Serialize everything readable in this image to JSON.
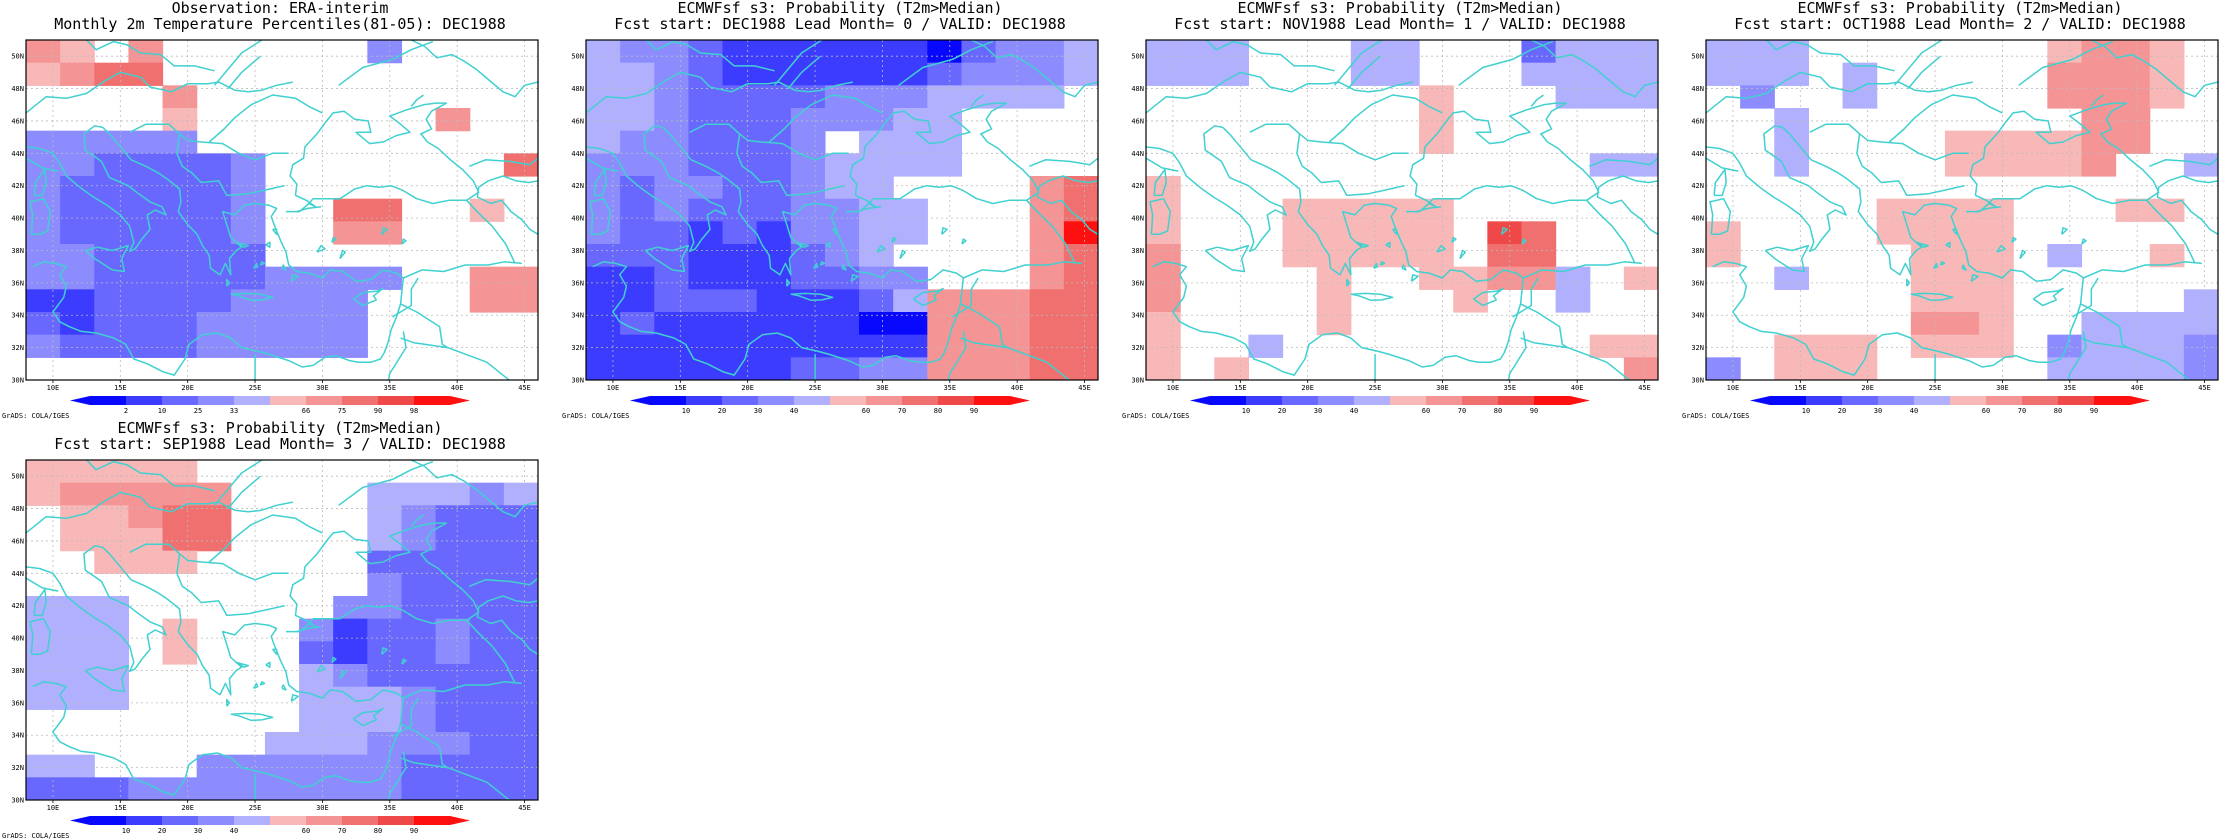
{
  "map_extent": {
    "lon_range": [
      8,
      46
    ],
    "lat_range": [
      30,
      51
    ],
    "lon_ticks": [
      "10E",
      "15E",
      "20E",
      "25E",
      "30E",
      "35E",
      "40E",
      "45E"
    ],
    "lat_ticks": [
      "30N",
      "32N",
      "34N",
      "36N",
      "38N",
      "40N",
      "42N",
      "44N",
      "46N",
      "48N",
      "50N"
    ]
  },
  "colors": {
    "coastline": "#40d0d0",
    "grid": "#bbbbbb",
    "pos_scale": [
      "#ffffff",
      "#f8b8b8",
      "#f49494",
      "#f07070",
      "#ee4848",
      "#ff1010"
    ],
    "neg_scale": [
      "#ffffff",
      "#b0b0ff",
      "#8c8cff",
      "#6868ff",
      "#3c3cff",
      "#0808ff"
    ]
  },
  "credit": "GrADS: COLA/IGES",
  "panels": [
    {
      "id": "obs",
      "title1": "Observation: ERA-interim",
      "title2": "Monthly 2m Temperature Percentiles(81-05): DEC1988",
      "colorbar_labels": [
        "2",
        "10",
        "25",
        "33",
        "66",
        "75",
        "90",
        "98"
      ],
      "grid": [
        "2 1 0 2 0 0 0 0 0 0 -2 0 0 0 0",
        "1 2 3 3 0 0 0 0 0 0 0 0 0 0 0",
        "0 0 0 0 2 0 0 0 0 0 0 0 0 0 0",
        "0 0 0 0 1 0 0 0 0 0 0 0 2 0 0",
        "-2 -2 -2 -2 -2 0 0 0 0 0 0 0 0 0 0",
        "-2 -2 -3 -3 -3 -3 -2 0 0 0 0 0 0 0 3",
        "-2 -3 -3 -3 -3 -3 -2 0 0 0 0 0 0 0 0",
        "-2 -3 -3 -3 -3 -3 -2 0 0 3 3 0 0 1 0",
        "-2 -3 -3 -3 -3 -3 -2 0 0 2 2 0 0 0 0",
        "-2 -2 -3 -3 -3 -3 -3 0 0 0 0 0 0 0 0",
        "-2 -2 -3 -3 -3 -3 -3 -2 -2 -2 -2 0 0 2 2",
        "-4 -4 -3 -3 -3 -3 -2 -2 -2 -2 0 0 0 2 2",
        "-3 -4 -3 -3 -3 -2 -2 -2 -2 -2 0 0 0 0 0",
        "-2 -3 -3 -3 -3 -2 -2 -2 -2 -2 0 0 0 0 0",
        "0 0 0 0 0 0 0 0 0 0 0 0 0 0 0"
      ]
    },
    {
      "id": "lead0",
      "title1": "ECMWFsf s3: Probability (T2m>Median)",
      "title2": "Fcst start: DEC1988  Lead Month= 0 / VALID: DEC1988",
      "colorbar_labels": [
        "10",
        "20",
        "30",
        "40",
        "60",
        "70",
        "80",
        "90"
      ],
      "grid": [
        "-1 -2 -2 -3 -4 -4 -4 -4 -4 -4 -5 -3 -2 -2 -1",
        "-1 -1 -2 -3 -4 -4 -4 -4 -4 -4 -3 -2 -2 -2 -1",
        "-1 -1 -2 -3 -3 -3 -3 -2 -2 -2 -1 -1 -1 -1 0",
        "-1 -1 -2 -3 -3 -3 -2 -2 -2 -1 -1 0 0 0 0",
        "-1 -2 -2 -3 -3 -3 -2 0 -1 -1 -1 0 0 0 0",
        "-2 -2 -2 -3 -3 -3 -2 -1 -1 -1 -1 0 0 0 0",
        "-2 -3 -2 -2 -3 -3 -2 -1 -1 0 0 0 0 2 3",
        "-2 -3 -2 -3 -3 -3 -2 -2 -1 -1 0 0 0 2 3",
        "-2 -3 -3 -4 -3 -4 -2 -2 -1 -1 0 0 0 2 5",
        "-3 -3 -3 -4 -4 -4 -3 -2 -1 0 0 0 0 2 3",
        "-4 -4 -3 -4 -4 -4 -3 -3 -2 -2 0 0 0 2 3",
        "-4 -4 -3 -3 -3 -4 -4 -4 -3 -1 2 2 2 3 3",
        "-4 -3 -4 -4 -4 -4 -4 -4 -5 -5 2 2 2 3 3",
        "-4 -4 -4 -4 -4 -4 -4 -4 -4 -4 2 2 2 3 3",
        "-4 -4 -4 -4 -4 -4 -3 -3 -2 -2 2 2 2 3 3"
      ]
    },
    {
      "id": "lead1",
      "title1": "ECMWFsf s3: Probability (T2m>Median)",
      "title2": "Fcst start: NOV1988  Lead Month= 1 / VALID: DEC1988",
      "colorbar_labels": [
        "10",
        "20",
        "30",
        "40",
        "60",
        "70",
        "80",
        "90"
      ],
      "grid": [
        "-1 -1 -1 0 0 0 -1 -1 0 0 0 -3 -1 -1 -1",
        "-1 -1 -1 0 0 0 -1 -1 0 0 0 -1 -1 -1 -1",
        "0 0 0 0 0 0 0 0 1 0 0 0 -1 -1 -1",
        "0 0 0 0 0 0 0 0 1 0 0 0 0 0 0",
        "0 0 0 0 0 0 0 0 1 0 0 0 0 0 0",
        "0 0 0 0 0 0 0 0 0 0 0 0 0 -1 -1",
        "1 0 0 0 0 0 0 0 0 0 0 0 0 0 0",
        "1 0 0 0 1 1 1 1 1 0 0 0 0 0 0",
        "1 0 0 0 1 1 1 1 1 0 4 3 0 0 0",
        "2 0 0 0 1 1 1 1 1 0 3 3 0 0 0",
        "2 0 0 0 0 1 0 0 1 1 2 2 -1 0 1",
        "2 0 0 0 0 1 0 0 0 1 0 0 -1 0 0",
        "1 0 0 0 0 1 0 0 0 0 0 0 0 0 0",
        "1 0 0 -1 0 0 0 0 0 0 0 0 0 1 1",
        "1 0 1 0 0 0 0 0 0 0 0 0 0 0 2"
      ]
    },
    {
      "id": "lead2",
      "title1": "ECMWFsf s3: Probability (T2m>Median)",
      "title2": "Fcst start: OCT1988  Lead Month= 2 / VALID: DEC1988",
      "colorbar_labels": [
        "10",
        "20",
        "30",
        "40",
        "60",
        "70",
        "80",
        "90"
      ],
      "grid": [
        "-1 -1 -1 0 0 0 0 0 0 0 1 2 2 1 0",
        "-1 -1 -1 0 -1 0 0 0 0 0 2 2 2 1 0",
        "0 -2 0 0 -1 0 0 0 0 0 2 2 2 1 0",
        "0 0 -1 0 0 0 0 0 0 0 0 2 2 0 0",
        "0 0 -1 0 0 0 0 1 1 1 1 2 2 0 0",
        "0 0 -1 0 0 0 0 1 1 1 1 2 0 0 -1",
        "0 0 0 0 0 0 0 0 0 0 0 0 0 0 0",
        "0 0 0 0 0 1 1 1 1 0 0 0 1 1 0",
        "1 0 0 0 0 1 1 1 1 0 0 0 0 0 0",
        "1 0 0 0 0 0 1 1 1 0 -1 0 0 1 0",
        "0 0 -1 0 0 0 1 1 1 0 0 0 0 0 0",
        "0 0 0 0 0 0 1 1 1 0 0 0 0 0 -1",
        "0 0 0 0 0 0 2 2 1 0 0 -1 -1 -1 -1",
        "0 0 1 1 1 0 1 1 1 0 -2 -1 -1 -1 -2",
        "-2 0 1 1 1 0 0 0 0 0 -1 -1 -1 -1 -2"
      ]
    },
    {
      "id": "lead3",
      "title1": "ECMWFsf s3: Probability (T2m>Median)",
      "title2": "Fcst start: SEP1988  Lead Month= 3 / VALID: DEC1988",
      "colorbar_labels": [
        "10",
        "20",
        "30",
        "40",
        "60",
        "70",
        "80",
        "90"
      ],
      "grid": [
        "1 1 1 1 1 0 0 0 0 0 0 0 0 0 0",
        "1 2 2 2 2 2 0 0 0 0 -1 -1 -1 -2 -1",
        "0 1 1 2 3 3 0 0 0 0 -1 -2 -3 -3 -3",
        "0 1 1 1 3 3 0 0 0 0 -1 -2 -3 -3 -3",
        "0 0 1 1 1 0 0 0 0 0 -3 -3 -3 -3 -3",
        "0 0 0 0 0 0 0 0 0 0 -2 -3 -3 -3 -3",
        "-1 -1 -1 0 0 0 0 0 0 -2 -2 -3 -3 -3 -3",
        "-1 -1 -1 0 1 0 0 0 -2 -4 -3 -3 -2 -3 -3",
        "-1 -1 -1 0 1 0 0 0 -3 -4 -3 -3 -2 -3 -3",
        "-1 -1 -1 0 0 0 0 0 -1 -2 -3 -3 -3 -3 -3",
        "-1 -1 -1 0 0 0 0 0 -1 -1 -1 -2 -3 -3 -3",
        "0 0 0 0 0 0 0 0 -1 -1 -1 -2 -3 -3 -3",
        "0 0 0 0 0 0 0 -1 -1 -1 -2 -2 -2 -3 -3",
        "-1 -1 0 0 0 -2 -2 -2 -2 -2 -2 -3 -3 -3 -3",
        "-3 -3 -3 -2 -2 -2 -2 -2 -2 -2 -2 -3 -3 -3 -3"
      ]
    }
  ]
}
